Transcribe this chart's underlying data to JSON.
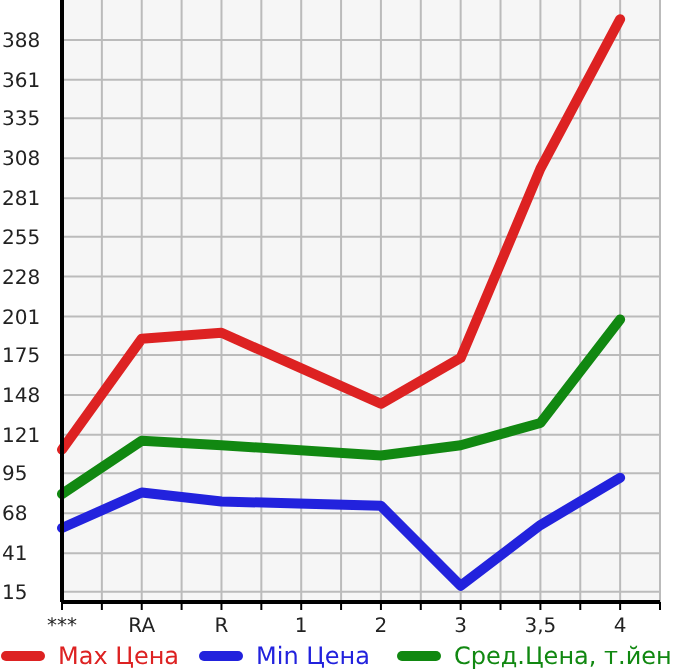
{
  "chart_data": {
    "type": "line",
    "categories": [
      "***",
      "RA",
      "R",
      "1",
      "2",
      "3",
      "3,5",
      "4"
    ],
    "series": [
      {
        "name": "Max Цена",
        "color": "#dd2222",
        "values": [
          111,
          186,
          190,
          null,
          142,
          173,
          301,
          402
        ]
      },
      {
        "name": "Min Цена",
        "color": "#2222dd",
        "values": [
          58,
          82,
          76,
          null,
          73,
          19,
          60,
          92
        ]
      },
      {
        "name": "Сред.Цена, т.йен",
        "color": "#118811",
        "values": [
          81,
          117,
          114,
          null,
          107,
          114,
          129,
          199
        ]
      }
    ],
    "ylim": [
      8,
      415
    ],
    "yticks": [
      15,
      41,
      68,
      95,
      121,
      148,
      175,
      201,
      228,
      255,
      281,
      308,
      335,
      361,
      388
    ],
    "grid": true,
    "legend": "bottom",
    "marker": "none",
    "line_style": "solid"
  }
}
